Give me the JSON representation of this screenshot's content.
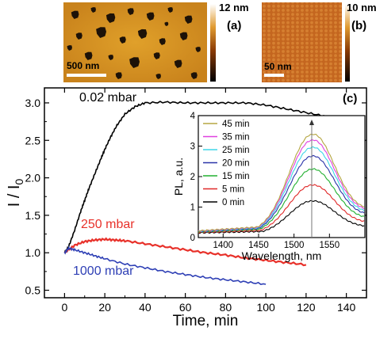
{
  "panels": {
    "a": {
      "label": "(a)",
      "colorbar_max": "12 nm",
      "scalebar": "500 nm"
    },
    "b": {
      "label": "(b)",
      "colorbar_max": "10 nm",
      "scalebar": "50 nm"
    }
  },
  "chart_data": [
    {
      "panel": "(c)",
      "type": "line",
      "xlabel": "Time, min",
      "ylabel": "I / I",
      "ylabel_sub": "0",
      "xlim": [
        -10,
        150
      ],
      "ylim": [
        0.4,
        3.2
      ],
      "xticks": [
        0,
        20,
        40,
        60,
        80,
        100,
        120,
        140
      ],
      "yticks": [
        0.5,
        1.0,
        1.5,
        2.0,
        2.5,
        3.0
      ],
      "xtick_labels": [
        "0",
        "20",
        "40",
        "60",
        "80",
        "100",
        "120",
        "140"
      ],
      "ytick_labels": [
        "0.5",
        "1.0",
        "1.5",
        "2.0",
        "2.5",
        "3.0"
      ],
      "series": [
        {
          "name": "0.02 mbar",
          "color": "#000000",
          "x": [
            0,
            2,
            5,
            8,
            10,
            12,
            15,
            18,
            20,
            23,
            26,
            30,
            35,
            40,
            50,
            60,
            70,
            80,
            90,
            100,
            110,
            120,
            130
          ],
          "y": [
            1.0,
            1.08,
            1.3,
            1.55,
            1.7,
            1.85,
            2.05,
            2.25,
            2.38,
            2.55,
            2.7,
            2.85,
            2.95,
            3.0,
            3.01,
            3.0,
            3.0,
            3.0,
            3.0,
            2.97,
            2.92,
            2.87,
            2.82
          ]
        },
        {
          "name": "250 mbar",
          "color": "#e8312a",
          "x": [
            0,
            5,
            10,
            15,
            20,
            25,
            30,
            40,
            50,
            60,
            70,
            80,
            90,
            100,
            110,
            120
          ],
          "y": [
            1.0,
            1.1,
            1.15,
            1.17,
            1.18,
            1.17,
            1.16,
            1.12,
            1.08,
            1.04,
            1.0,
            0.97,
            0.93,
            0.9,
            0.87,
            0.84
          ]
        },
        {
          "name": "1000 mbar",
          "color": "#2e3fb5",
          "x": [
            0,
            2,
            5,
            10,
            15,
            20,
            30,
            40,
            50,
            60,
            70,
            80,
            90,
            100
          ],
          "y": [
            1.0,
            1.06,
            1.04,
            1.0,
            0.96,
            0.92,
            0.85,
            0.8,
            0.75,
            0.71,
            0.67,
            0.64,
            0.61,
            0.58
          ]
        }
      ]
    },
    {
      "panel": "inset",
      "type": "line",
      "xlabel": "Wavelength, nm",
      "ylabel": "PL, a.u.",
      "xlim": [
        1365,
        1600
      ],
      "ylim": [
        0,
        4
      ],
      "xticks": [
        1400,
        1450,
        1500,
        1550
      ],
      "yticks": [
        0,
        1,
        2,
        3,
        4
      ],
      "xtick_labels": [
        "1400",
        "1450",
        "1500",
        "1550"
      ],
      "ytick_labels": [
        "0",
        "1",
        "2",
        "3",
        "4"
      ],
      "peak_marker_x": 1525,
      "series": [
        {
          "name": "45 min",
          "color": "#b5a642",
          "peak": 3.5
        },
        {
          "name": "35 min",
          "color": "#e040e0",
          "peak": 3.3
        },
        {
          "name": "25 min",
          "color": "#3fd6e8",
          "peak": 3.05
        },
        {
          "name": "20 min",
          "color": "#2a33a8",
          "peak": 2.75
        },
        {
          "name": "15 min",
          "color": "#22b030",
          "peak": 2.3
        },
        {
          "name": "5 min",
          "color": "#e02828",
          "peak": 1.75
        },
        {
          "name": "0 min",
          "color": "#000000",
          "peak": 1.2
        }
      ]
    }
  ]
}
